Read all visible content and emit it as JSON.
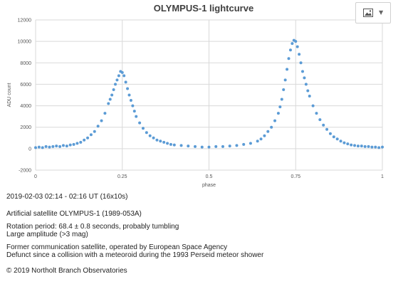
{
  "menu": {
    "icon": "image-icon",
    "caret": "chevron-down-icon"
  },
  "captions": {
    "date_time": "2019-02-03   02:14 - 02:16 UT (16x10s)",
    "object": "Artificial satellite OLYMPUS-1 (1989-053A)",
    "rotation": "Rotation period: 68.4 ± 0.8 seconds, probably tumbling",
    "amplitude": "Large amplitude (>3 mag)",
    "former": "Former communication satellite, operated by European Space Agency",
    "defunct": "Defunct since a collision with a meteoroid during the 1993 Perseid meteor shower",
    "copyright": "© 2019 Northolt Branch Observatories"
  },
  "chart_data": {
    "type": "scatter",
    "title": "OLYMPUS-1 lightcurve",
    "xlabel": "phase",
    "ylabel": "ADU count",
    "xlim": [
      0,
      1
    ],
    "ylim": [
      -2000,
      12000
    ],
    "xticks": [
      0,
      0.25,
      0.5,
      0.75,
      1
    ],
    "xtick_labels": [
      "0",
      "0.25",
      "0.5",
      "0.75",
      "1"
    ],
    "yticks": [
      -2000,
      0,
      2000,
      4000,
      6000,
      8000,
      10000,
      12000
    ],
    "ytick_labels": [
      "-2000",
      "0",
      "2000",
      "4000",
      "6000",
      "8000",
      "10000",
      "12000"
    ],
    "grid": true,
    "legend": "none",
    "series_color": "#5b9bd5",
    "series": [
      {
        "x": [
          0.0,
          0.01,
          0.02,
          0.03,
          0.04,
          0.05,
          0.06,
          0.07,
          0.08,
          0.09,
          0.1,
          0.11,
          0.12,
          0.13,
          0.14,
          0.15,
          0.16,
          0.17,
          0.18,
          0.19,
          0.2,
          0.21,
          0.215,
          0.22,
          0.225,
          0.23,
          0.235,
          0.24,
          0.245,
          0.25,
          0.255,
          0.26,
          0.265,
          0.27,
          0.275,
          0.28,
          0.285,
          0.29,
          0.3,
          0.31,
          0.32,
          0.33,
          0.34,
          0.35,
          0.36,
          0.37,
          0.38,
          0.39,
          0.4,
          0.42,
          0.44,
          0.46,
          0.48,
          0.5,
          0.52,
          0.54,
          0.56,
          0.58,
          0.6,
          0.62,
          0.64,
          0.65,
          0.66,
          0.67,
          0.68,
          0.69,
          0.7,
          0.705,
          0.71,
          0.715,
          0.72,
          0.725,
          0.73,
          0.735,
          0.74,
          0.745,
          0.75,
          0.755,
          0.76,
          0.765,
          0.77,
          0.775,
          0.78,
          0.785,
          0.79,
          0.8,
          0.81,
          0.82,
          0.83,
          0.84,
          0.85,
          0.86,
          0.87,
          0.88,
          0.89,
          0.9,
          0.91,
          0.92,
          0.93,
          0.94,
          0.95,
          0.96,
          0.97,
          0.98,
          0.99,
          1.0
        ],
        "y": [
          100,
          150,
          100,
          200,
          150,
          200,
          250,
          200,
          300,
          250,
          350,
          400,
          500,
          600,
          800,
          1000,
          1300,
          1600,
          2100,
          2600,
          3300,
          4200,
          4600,
          5000,
          5500,
          6000,
          6400,
          6800,
          7200,
          7100,
          6800,
          6200,
          5600,
          5000,
          4500,
          4000,
          3500,
          3000,
          2400,
          1900,
          1500,
          1200,
          1000,
          800,
          700,
          600,
          500,
          400,
          350,
          300,
          250,
          200,
          150,
          150,
          200,
          200,
          250,
          300,
          400,
          500,
          700,
          900,
          1200,
          1600,
          2000,
          2600,
          3300,
          3900,
          4600,
          5500,
          6400,
          7400,
          8400,
          9200,
          9800,
          10100,
          10000,
          9500,
          8800,
          8000,
          7200,
          6600,
          6000,
          5400,
          4900,
          4000,
          3300,
          2700,
          2200,
          1800,
          1400,
          1100,
          900,
          700,
          550,
          450,
          350,
          300,
          250,
          250,
          200,
          200,
          150,
          150,
          100,
          150
        ]
      }
    ]
  }
}
